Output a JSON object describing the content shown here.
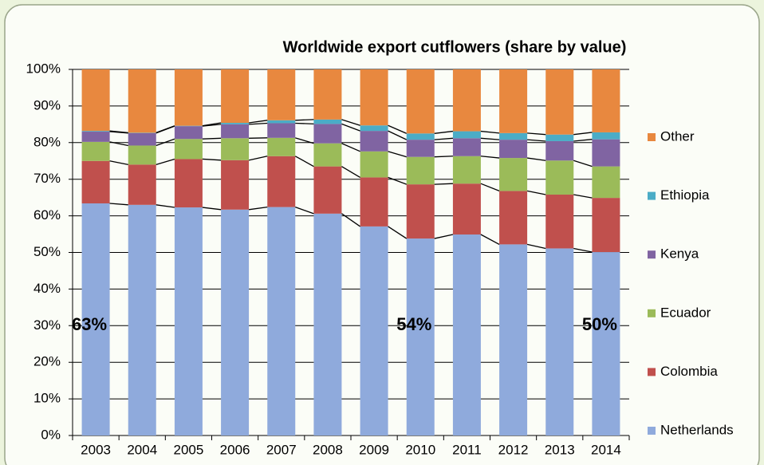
{
  "chart_data": {
    "type": "stacked-bar",
    "title": "Worldwide export cutflowers (share by value)",
    "categories": [
      "2003",
      "2004",
      "2005",
      "2006",
      "2007",
      "2008",
      "2009",
      "2010",
      "2011",
      "2012",
      "2013",
      "2014"
    ],
    "series": [
      {
        "name": "Netherlands",
        "color": "#8faadc",
        "values": [
          63.4,
          63.0,
          62.3,
          61.7,
          62.4,
          60.6,
          57.1,
          53.8,
          54.9,
          52.2,
          51.1,
          50.1
        ],
        "value_labels": [
          "63%",
          null,
          null,
          null,
          null,
          null,
          null,
          "54%",
          null,
          null,
          null,
          "50%"
        ]
      },
      {
        "name": "Colombia",
        "color": "#c0504d",
        "values": [
          11.6,
          11.0,
          13.2,
          13.5,
          13.9,
          12.9,
          13.4,
          14.8,
          13.9,
          14.6,
          14.7,
          14.8
        ]
      },
      {
        "name": "Ecuador",
        "color": "#9bbb59",
        "values": [
          5.2,
          5.2,
          5.5,
          6.0,
          5.0,
          6.3,
          7.1,
          7.5,
          7.5,
          9.0,
          9.3,
          8.6
        ]
      },
      {
        "name": "Kenya",
        "color": "#8064a2",
        "values": [
          2.8,
          3.4,
          3.5,
          3.8,
          4.0,
          5.3,
          5.6,
          4.7,
          4.9,
          5.0,
          5.3,
          7.4
        ]
      },
      {
        "name": "Ethiopia",
        "color": "#4bacc6",
        "values": [
          0.2,
          0.1,
          0.1,
          0.4,
          0.8,
          1.2,
          1.5,
          1.7,
          1.9,
          1.8,
          1.8,
          1.9
        ]
      },
      {
        "name": "Other",
        "color": "#e8883f",
        "values": [
          16.8,
          17.3,
          15.4,
          14.6,
          13.9,
          13.7,
          15.3,
          17.5,
          16.9,
          17.4,
          17.8,
          17.2
        ]
      }
    ],
    "ylim": [
      0,
      100
    ],
    "yticks": [
      {
        "value": 0,
        "label": "0%"
      },
      {
        "value": 10,
        "label": "10%"
      },
      {
        "value": 20,
        "label": "20%"
      },
      {
        "value": 30,
        "label": "30%"
      },
      {
        "value": 40,
        "label": "40%"
      },
      {
        "value": 50,
        "label": "50%"
      },
      {
        "value": 60,
        "label": "60%"
      },
      {
        "value": 70,
        "label": "70%"
      },
      {
        "value": 80,
        "label": "80%"
      },
      {
        "value": 90,
        "label": "90%"
      },
      {
        "value": 100,
        "label": "100%"
      }
    ],
    "grid": true,
    "legend": "right"
  }
}
